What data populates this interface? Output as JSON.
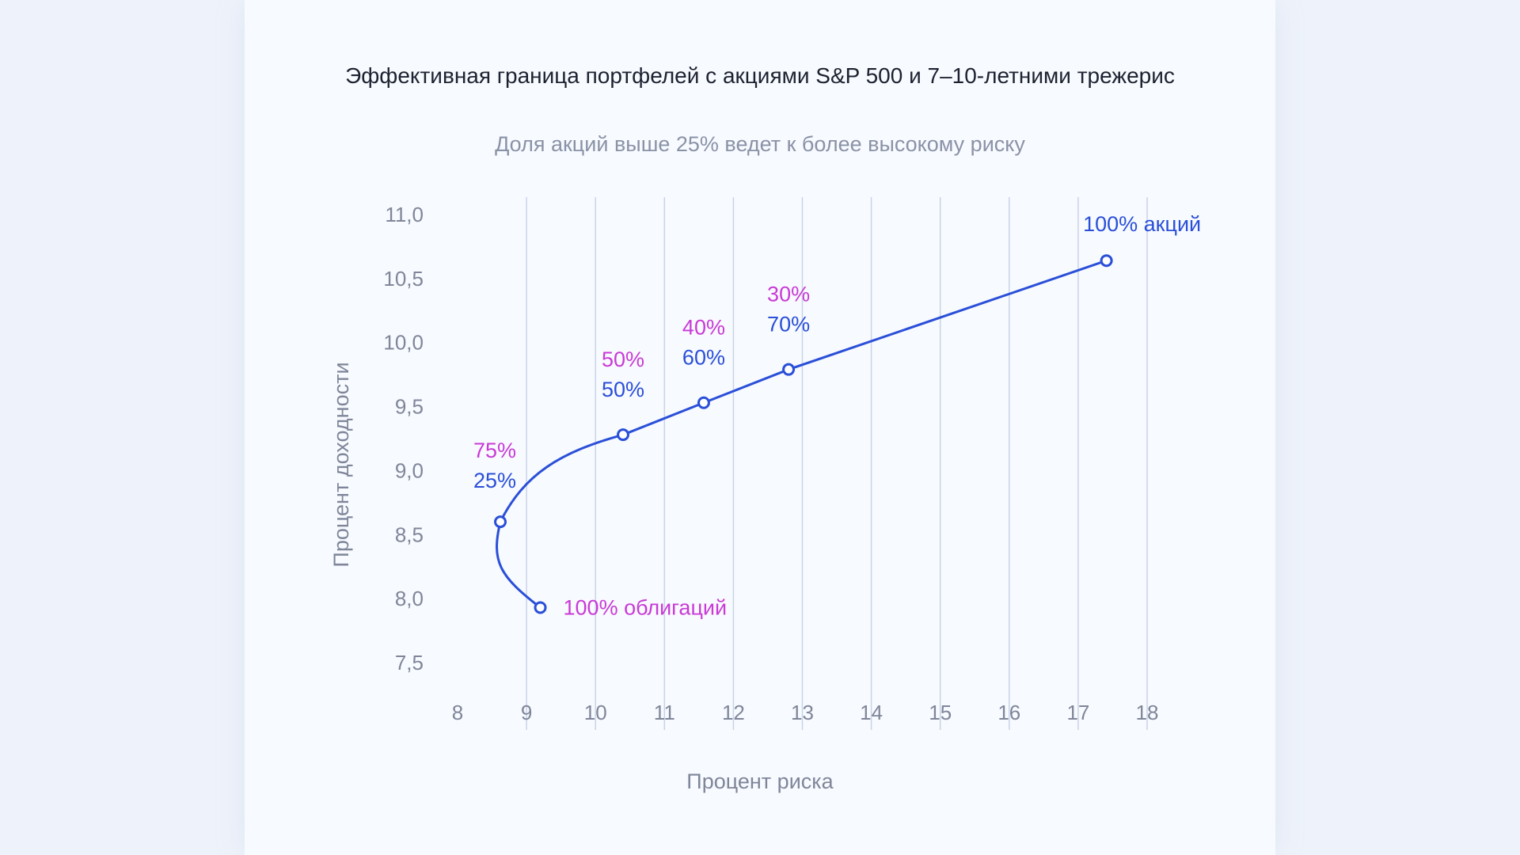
{
  "chart_data": {
    "type": "line",
    "title": "Эффективная граница портфелей с акциями S&P 500 и 7–10-летними трежерис",
    "subtitle": "Доля акций выше 25% ведет к более высокому риску",
    "xlabel": "Процент риска",
    "ylabel": "Процент доходности",
    "xlim": [
      8,
      18
    ],
    "ylim": [
      7.5,
      11.0
    ],
    "x_ticks": [
      "8",
      "9",
      "10",
      "11",
      "12",
      "13",
      "14",
      "15",
      "16",
      "17",
      "18"
    ],
    "y_ticks": [
      "11,0",
      "10,5",
      "10,0",
      "9,5",
      "9,0",
      "8,5",
      "8,0",
      "7,5"
    ],
    "grid": "vertical",
    "series": [
      {
        "points": [
          {
            "x": 9.2,
            "y": 7.93,
            "bonds_label": "100% облигаций",
            "stocks_label": ""
          },
          {
            "x": 8.62,
            "y": 8.6,
            "bonds_label": "75%",
            "stocks_label": "25%"
          },
          {
            "x": 10.4,
            "y": 9.28,
            "bonds_label": "50%",
            "stocks_label": "50%"
          },
          {
            "x": 11.57,
            "y": 9.53,
            "bonds_label": "40%",
            "stocks_label": "60%"
          },
          {
            "x": 12.8,
            "y": 9.79,
            "bonds_label": "30%",
            "stocks_label": "70%"
          },
          {
            "x": 17.41,
            "y": 10.64,
            "bonds_label": "",
            "stocks_label": "100% акций"
          }
        ]
      }
    ],
    "colors": {
      "line": "#2a4fd8",
      "bonds_text": "#c93ad6",
      "stocks_text": "#2a4fd8",
      "grid": "#c9d3e8"
    }
  }
}
